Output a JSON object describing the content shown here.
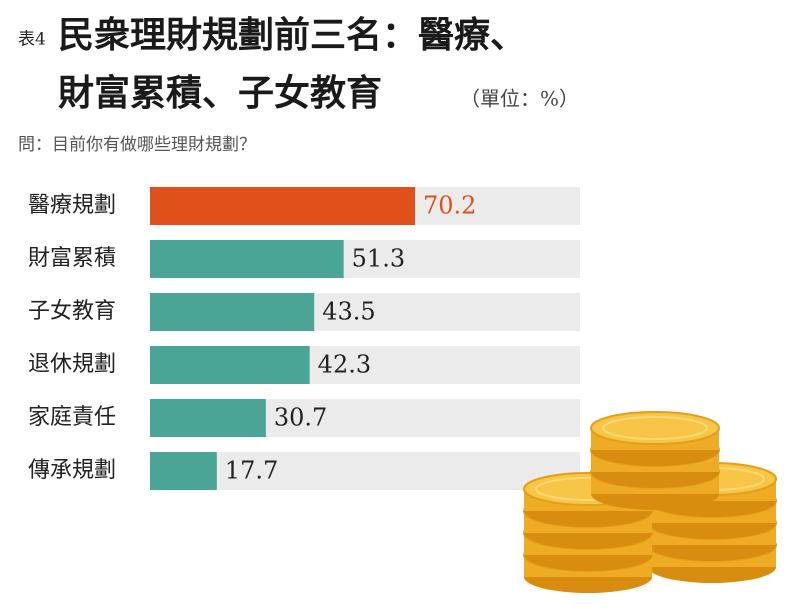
{
  "chart_data": {
    "type": "bar",
    "orientation": "horizontal",
    "label": "表4",
    "title_lines": [
      "民衆理財規劃前三名：醫療、",
      "財富累積、子女教育"
    ],
    "unit": "（單位：%）",
    "subtitle": "問：目前你有做哪些理財規劃？",
    "categories": [
      "醫療規劃",
      "財富累積",
      "子女教育",
      "退休規劃",
      "家庭責任",
      "傳承規劃"
    ],
    "values": [
      70.2,
      51.3,
      43.5,
      42.3,
      30.7,
      17.7
    ],
    "colors": [
      "#e0501a",
      "#4ba596",
      "#4ba596",
      "#4ba596",
      "#4ba596",
      "#4ba596"
    ]
  }
}
